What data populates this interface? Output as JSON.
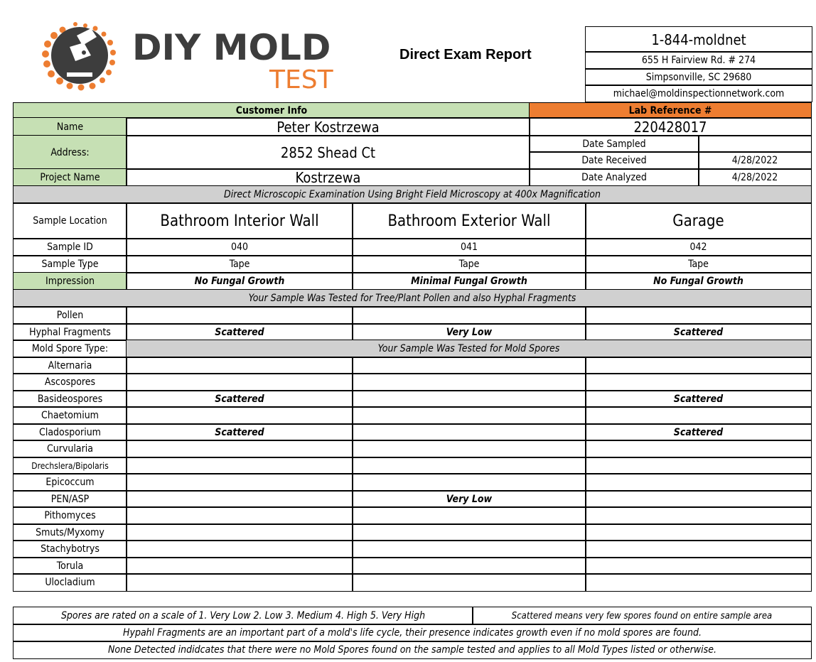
{
  "logo": {
    "line1": "DIY MOLD",
    "line2": "TEST",
    "accent": "#ed7d31",
    "dark": "#3d3d3d"
  },
  "title": "Direct Exam Report",
  "contact": {
    "phone": "1-844-moldnet",
    "address1": "655 H Fairview Rd. # 274",
    "address2": "Simpsonville, SC 29680",
    "email": "michael@moldinspectionnetwork.com"
  },
  "customer": {
    "header": "Customer Info",
    "name_label": "Name",
    "name": "Peter Kostrzewa",
    "address_label": "Address:",
    "address": "2852 Shead Ct",
    "project_label": "Project Name",
    "project": "Kostrzewa"
  },
  "lab": {
    "header": "Lab Reference #",
    "ref": "220428017",
    "date_sampled_label": "Date Sampled",
    "date_sampled": "",
    "date_received_label": "Date Received",
    "date_received": "4/28/2022",
    "date_analyzed_label": "Date Analyzed",
    "date_analyzed": "4/28/2022"
  },
  "method": "Direct Microscopic Examination Using Bright Field Microscopy at 400x Magnification",
  "samples": {
    "location_label": "Sample Location",
    "id_label": "Sample ID",
    "type_label": "Sample Type",
    "impression_label": "Impression",
    "columns": [
      {
        "location": "Bathroom Interior Wall",
        "id": "040",
        "type": "Tape",
        "impression": "No  Fungal Growth"
      },
      {
        "location": "Bathroom Exterior Wall",
        "id": "041",
        "type": "Tape",
        "impression": "Minimal  Fungal Growth"
      },
      {
        "location": "Garage",
        "id": "042",
        "type": "Tape",
        "impression": "No  Fungal Growth"
      }
    ]
  },
  "pollen_banner": "Your Sample Was Tested for Tree/Plant Pollen and also Hyphal Fragments",
  "mold_banner": "Your Sample Was Tested for Mold Spores",
  "rows": [
    {
      "label": "Pollen",
      "values": [
        "",
        "",
        ""
      ]
    },
    {
      "label": "Hyphal Fragments",
      "values": [
        "Scattered",
        "Very Low",
        "Scattered"
      ]
    },
    {
      "label": "Mold Spore Type:",
      "banner": true
    },
    {
      "label": "Alternaria",
      "values": [
        "",
        "",
        ""
      ]
    },
    {
      "label": "Ascospores",
      "values": [
        "",
        "",
        ""
      ]
    },
    {
      "label": "Basideospores",
      "values": [
        "Scattered",
        "",
        "Scattered"
      ]
    },
    {
      "label": "Chaetomium",
      "values": [
        "",
        "",
        ""
      ]
    },
    {
      "label": "Cladosporium",
      "values": [
        "Scattered",
        "",
        "Scattered"
      ]
    },
    {
      "label": "Curvularia",
      "values": [
        "",
        "",
        ""
      ]
    },
    {
      "label": "Drechslera/Bipolaris",
      "values": [
        "",
        "",
        ""
      ]
    },
    {
      "label": "Epicoccum",
      "values": [
        "",
        "",
        ""
      ]
    },
    {
      "label": "PEN/ASP",
      "values": [
        "",
        "Very Low",
        ""
      ]
    },
    {
      "label": "Pithomyces",
      "values": [
        "",
        "",
        ""
      ]
    },
    {
      "label": "Smuts/Myxomy",
      "values": [
        "",
        "",
        ""
      ]
    },
    {
      "label": "Stachybotrys",
      "values": [
        "",
        "",
        ""
      ]
    },
    {
      "label": "Torula",
      "values": [
        "",
        "",
        ""
      ]
    },
    {
      "label": "Ulocladium",
      "values": [
        "",
        "",
        ""
      ]
    }
  ],
  "notes": {
    "scale": "Spores are rated on a scale of 1. Very Low 2. Low 3. Medium 4. High 5. Very High",
    "scattered": "Scattered means very few spores found on entire sample area",
    "hyphal": "Hypahl Fragments are an important part of a mold's life cycle, their presence indicates growth even if no mold spores are found.",
    "none": "None Detected indidcates that there were no Mold Spores found on the sample tested and applies to all Mold Types listed or otherwise."
  }
}
